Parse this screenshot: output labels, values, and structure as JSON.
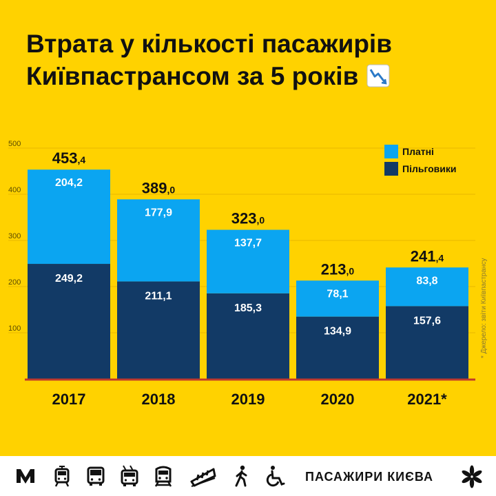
{
  "title": {
    "line1": "Втрата у кількості пасажирів",
    "line2": "Київпастрансом за 5 років"
  },
  "legend": {
    "paid": "Платні",
    "benefit": "Пільговики"
  },
  "source_note": "* Джерело: звіти Київпастрансу",
  "footer": {
    "brand": "ПАСАЖИРИ КИЄВА",
    "icons": [
      "metro-icon",
      "tram-icon",
      "bus-icon",
      "trolleybus-icon",
      "funicular-icon",
      "train-icon",
      "pedestrian-icon",
      "wheelchair-icon",
      "chestnut-leaf-icon"
    ]
  },
  "colors": {
    "background": "#FFD200",
    "paid": "#0BA5F1",
    "benefit": "#123A66",
    "baseline": "#C0392B"
  },
  "chart_data": {
    "type": "bar",
    "stacked": true,
    "categories": [
      "2017",
      "2018",
      "2019",
      "2020",
      "2021*"
    ],
    "series": [
      {
        "name": "Пільговики",
        "values": [
          249.2,
          211.1,
          185.3,
          134.9,
          157.6
        ]
      },
      {
        "name": "Платні",
        "values": [
          204.2,
          177.9,
          137.7,
          78.1,
          83.8
        ]
      }
    ],
    "totals": [
      453.4,
      389.0,
      323.0,
      213.0,
      241.4
    ],
    "total_labels": [
      {
        "int": "453",
        "dec": ",4"
      },
      {
        "int": "389",
        "dec": ",0"
      },
      {
        "int": "323",
        "dec": ",0"
      },
      {
        "int": "213",
        "dec": ",0"
      },
      {
        "int": "241",
        "dec": ",4"
      }
    ],
    "value_labels": {
      "benefit": [
        "249,2",
        "211,1",
        "185,3",
        "134,9",
        "157,6"
      ],
      "paid": [
        "204,2",
        "177,9",
        "137,7",
        "78,1",
        "83,8"
      ]
    },
    "yticks": [
      100,
      200,
      300,
      400,
      500
    ],
    "ylim": [
      0,
      500
    ],
    "grid": true,
    "legend_position": "top-right"
  }
}
